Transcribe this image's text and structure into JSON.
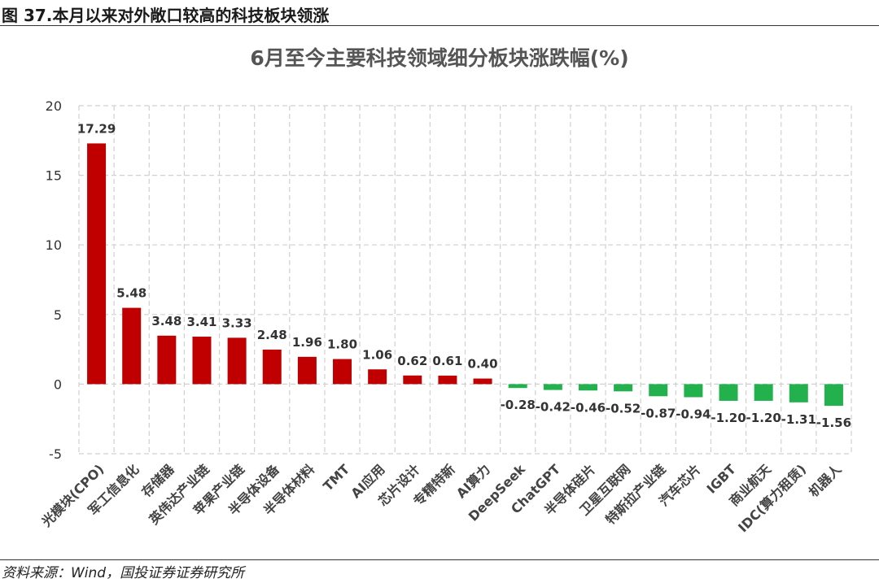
{
  "figure": {
    "title": "图 37.本月以来对外敞口较高的科技板块领涨",
    "source": "资料来源：Wind，国投证券证券研究所"
  },
  "colors": {
    "positive": "#C00000",
    "negative": "#22B14C",
    "grid": "#D0D0D0"
  },
  "chart_data": {
    "type": "bar",
    "title": "6月至今主要科技领域细分板块涨跌幅(%)",
    "xlabel": "",
    "ylabel": "",
    "ylim": [
      -5,
      20
    ],
    "yticks": [
      -5,
      0,
      5,
      10,
      15,
      20
    ],
    "grid": true,
    "legend": "none",
    "categories": [
      "光模块(CPO)",
      "军工信息化",
      "存储器",
      "英伟达产业链",
      "苹果产业链",
      "半导体设备",
      "半导体材料",
      "TMT",
      "AI应用",
      "芯片设计",
      "专精特新",
      "AI算力",
      "DeepSeek",
      "ChatGPT",
      "半导体硅片",
      "卫星互联网",
      "特斯拉产业链",
      "汽车芯片",
      "IGBT",
      "商业航天",
      "IDC(算力租赁)",
      "机器人"
    ],
    "values": [
      17.29,
      5.48,
      3.48,
      3.41,
      3.33,
      2.48,
      1.96,
      1.8,
      1.06,
      0.62,
      0.61,
      0.4,
      -0.28,
      -0.42,
      -0.46,
      -0.52,
      -0.87,
      -0.94,
      -1.2,
      -1.2,
      -1.31,
      -1.56
    ],
    "labels": [
      "17.29",
      "5.48",
      "3.48",
      "3.41",
      "3.33",
      "2.48",
      "1.96",
      "1.80",
      "1.06",
      "0.62",
      "0.61",
      "0.40",
      "-0.28",
      "-0.42",
      "-0.46",
      "-0.52",
      "-0.87",
      "-0.94",
      "-1.20",
      "-1.20",
      "-1.31",
      "-1.56"
    ]
  }
}
